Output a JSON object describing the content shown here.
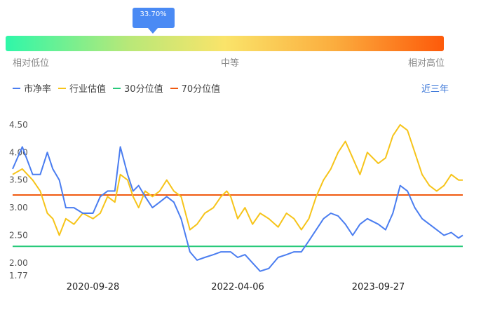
{
  "gauge": {
    "percentile_label": "33.70%",
    "percentile": 0.337,
    "low_label": "相对低位",
    "mid_label": "中等",
    "high_label": "相对高位"
  },
  "period_selector": "近三年",
  "colors": {
    "pb": "#4a7df0",
    "industry": "#f6c41a",
    "p30": "#27c97a",
    "p70": "#f05a10"
  },
  "chart_data": {
    "type": "line",
    "y_ticks": [
      "4.50",
      "4.00",
      "3.50",
      "3.00",
      "2.50",
      "2.00",
      "1.77"
    ],
    "y_tick_values": [
      4.5,
      4.0,
      3.5,
      3.0,
      2.5,
      2.0,
      1.77
    ],
    "ylim": [
      1.77,
      4.6
    ],
    "x_ticks": [
      "2020-09-28",
      "2022-04-06",
      "2023-09-27"
    ],
    "x_tick_values": [
      "2020-09-28",
      "2022-04-06",
      "2023-09-27"
    ],
    "xlim": [
      "2019-11-25",
      "2024-08-16"
    ],
    "legend": [
      "市净率",
      "行业估值",
      "30分位值",
      "70分位值"
    ],
    "reference_lines": {
      "30分位值": 2.3,
      "70分位值": 3.23
    },
    "series": [
      {
        "name": "市净率",
        "x": [
          "2019-11-25",
          "2020-01-01",
          "2020-02-10",
          "2020-03-10",
          "2020-04-06",
          "2020-04-27",
          "2020-05-22",
          "2020-06-16",
          "2020-07-17",
          "2020-08-20",
          "2020-09-28",
          "2020-10-26",
          "2020-11-23",
          "2020-12-21",
          "2021-01-11",
          "2021-02-08",
          "2021-03-01",
          "2021-03-22",
          "2021-04-16",
          "2021-05-14",
          "2021-06-11",
          "2021-07-08",
          "2021-08-04",
          "2021-09-01",
          "2021-10-05",
          "2021-11-01",
          "2021-12-01",
          "2022-01-03",
          "2022-02-01",
          "2022-02-23",
          "2022-03-10",
          "2022-04-06",
          "2022-05-04",
          "2022-06-02",
          "2022-07-01",
          "2022-08-03",
          "2022-09-08",
          "2022-10-10",
          "2022-11-08",
          "2022-12-06",
          "2023-01-04",
          "2023-02-01",
          "2023-03-01",
          "2023-03-29",
          "2023-04-26",
          "2023-05-24",
          "2023-06-21",
          "2023-07-19",
          "2023-08-16",
          "2023-09-27",
          "2023-10-25",
          "2023-11-22",
          "2023-12-20",
          "2024-01-17",
          "2024-02-14",
          "2024-03-13",
          "2024-04-10",
          "2024-05-08",
          "2024-06-05",
          "2024-07-03",
          "2024-07-31",
          "2024-08-16"
        ],
        "values": [
          3.7,
          4.1,
          3.6,
          3.6,
          4.0,
          3.7,
          3.5,
          3.0,
          3.0,
          2.9,
          2.9,
          3.2,
          3.3,
          3.3,
          4.1,
          3.6,
          3.3,
          3.4,
          3.2,
          3.0,
          3.1,
          3.2,
          3.1,
          2.8,
          2.2,
          2.05,
          2.1,
          2.15,
          2.2,
          2.2,
          2.2,
          2.1,
          2.15,
          2.0,
          1.85,
          1.9,
          2.1,
          2.15,
          2.2,
          2.2,
          2.4,
          2.6,
          2.8,
          2.9,
          2.85,
          2.7,
          2.5,
          2.7,
          2.8,
          2.7,
          2.6,
          2.9,
          3.4,
          3.3,
          3.0,
          2.8,
          2.7,
          2.6,
          2.5,
          2.55,
          2.45,
          2.5
        ]
      },
      {
        "name": "行业估值",
        "x": [
          "2019-11-25",
          "2020-01-01",
          "2020-02-10",
          "2020-03-10",
          "2020-04-06",
          "2020-04-27",
          "2020-05-22",
          "2020-06-16",
          "2020-07-17",
          "2020-08-20",
          "2020-09-28",
          "2020-10-26",
          "2020-11-23",
          "2020-12-21",
          "2021-01-11",
          "2021-02-08",
          "2021-03-01",
          "2021-03-22",
          "2021-04-16",
          "2021-05-14",
          "2021-06-11",
          "2021-07-08",
          "2021-08-04",
          "2021-09-01",
          "2021-10-05",
          "2021-11-01",
          "2021-12-01",
          "2022-01-03",
          "2022-02-01",
          "2022-02-23",
          "2022-03-10",
          "2022-04-06",
          "2022-05-04",
          "2022-06-02",
          "2022-07-01",
          "2022-08-03",
          "2022-09-08",
          "2022-10-10",
          "2022-11-08",
          "2022-12-06",
          "2023-01-04",
          "2023-02-01",
          "2023-03-01",
          "2023-03-29",
          "2023-04-26",
          "2023-05-24",
          "2023-06-21",
          "2023-07-19",
          "2023-08-16",
          "2023-09-27",
          "2023-10-25",
          "2023-11-22",
          "2023-12-20",
          "2024-01-17",
          "2024-02-14",
          "2024-03-13",
          "2024-04-10",
          "2024-05-08",
          "2024-06-05",
          "2024-07-03",
          "2024-07-31",
          "2024-08-16"
        ],
        "values": [
          3.6,
          3.7,
          3.5,
          3.3,
          2.9,
          2.8,
          2.5,
          2.8,
          2.7,
          2.9,
          2.8,
          2.9,
          3.2,
          3.1,
          3.6,
          3.5,
          3.2,
          3.0,
          3.3,
          3.2,
          3.3,
          3.5,
          3.3,
          3.2,
          2.6,
          2.7,
          2.9,
          3.0,
          3.2,
          3.3,
          3.2,
          2.8,
          3.0,
          2.7,
          2.9,
          2.8,
          2.65,
          2.9,
          2.8,
          2.6,
          2.8,
          3.2,
          3.5,
          3.7,
          4.0,
          4.2,
          3.9,
          3.6,
          4.0,
          3.8,
          3.9,
          4.3,
          4.5,
          4.4,
          4.0,
          3.6,
          3.4,
          3.3,
          3.4,
          3.6,
          3.5,
          3.5
        ]
      }
    ]
  }
}
